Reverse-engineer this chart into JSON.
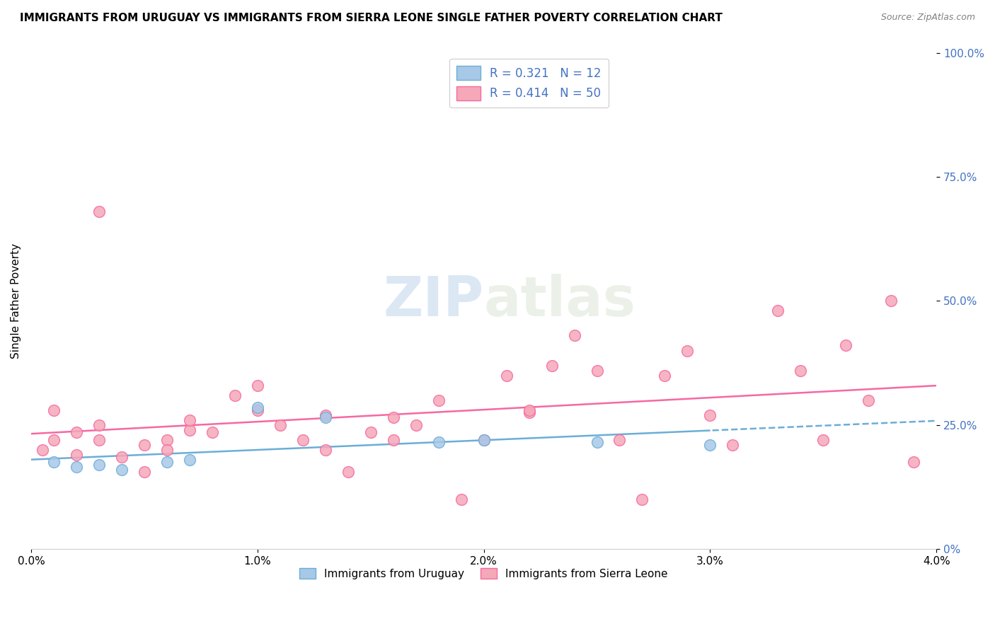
{
  "title": "IMMIGRANTS FROM URUGUAY VS IMMIGRANTS FROM SIERRA LEONE SINGLE FATHER POVERTY CORRELATION CHART",
  "source": "Source: ZipAtlas.com",
  "ylabel": "Single Father Poverty",
  "right_ytick_vals": [
    0.0,
    0.25,
    0.5,
    0.75,
    1.0
  ],
  "right_ytick_labels": [
    "0%",
    "25.0%",
    "50.0%",
    "75.0%",
    "100.0%"
  ],
  "legend1_r": "0.321",
  "legend1_n": "12",
  "legend2_r": "0.414",
  "legend2_n": "50",
  "legend_bottom1": "Immigrants from Uruguay",
  "legend_bottom2": "Immigrants from Sierra Leone",
  "uruguay_color": "#a8c8e8",
  "sierraleone_color": "#f4a8b8",
  "line_uruguay": "#6baed6",
  "line_sierraleone": "#f768a1",
  "watermark": "ZIPatlas",
  "uruguay_x": [
    0.001,
    0.002,
    0.003,
    0.004,
    0.006,
    0.007,
    0.01,
    0.013,
    0.018,
    0.02,
    0.025,
    0.03
  ],
  "uruguay_y": [
    0.175,
    0.165,
    0.17,
    0.16,
    0.175,
    0.18,
    0.285,
    0.265,
    0.215,
    0.22,
    0.215,
    0.21
  ],
  "sierraleone_x": [
    0.0005,
    0.001,
    0.001,
    0.002,
    0.002,
    0.003,
    0.003,
    0.004,
    0.005,
    0.005,
    0.006,
    0.006,
    0.007,
    0.007,
    0.008,
    0.009,
    0.01,
    0.01,
    0.011,
    0.012,
    0.013,
    0.013,
    0.014,
    0.015,
    0.016,
    0.016,
    0.017,
    0.018,
    0.019,
    0.02,
    0.021,
    0.022,
    0.022,
    0.023,
    0.024,
    0.025,
    0.026,
    0.027,
    0.028,
    0.029,
    0.03,
    0.031,
    0.033,
    0.034,
    0.035,
    0.036,
    0.037,
    0.038,
    0.039,
    0.003
  ],
  "sierraleone_y": [
    0.2,
    0.28,
    0.22,
    0.235,
    0.19,
    0.22,
    0.25,
    0.185,
    0.21,
    0.155,
    0.22,
    0.2,
    0.24,
    0.26,
    0.235,
    0.31,
    0.28,
    0.33,
    0.25,
    0.22,
    0.27,
    0.2,
    0.155,
    0.235,
    0.265,
    0.22,
    0.25,
    0.3,
    0.1,
    0.22,
    0.35,
    0.275,
    0.28,
    0.37,
    0.43,
    0.36,
    0.22,
    0.1,
    0.35,
    0.4,
    0.27,
    0.21,
    0.48,
    0.36,
    0.22,
    0.41,
    0.3,
    0.5,
    0.175,
    0.68
  ],
  "xlim": [
    0.0,
    0.04
  ],
  "ylim": [
    0.0,
    1.0
  ],
  "background_color": "#ffffff",
  "grid_color": "#dddddd",
  "xtick_vals": [
    0.0,
    0.01,
    0.02,
    0.03,
    0.04
  ],
  "xtick_labels": [
    "0.0%",
    "1.0%",
    "2.0%",
    "3.0%",
    "4.0%"
  ]
}
